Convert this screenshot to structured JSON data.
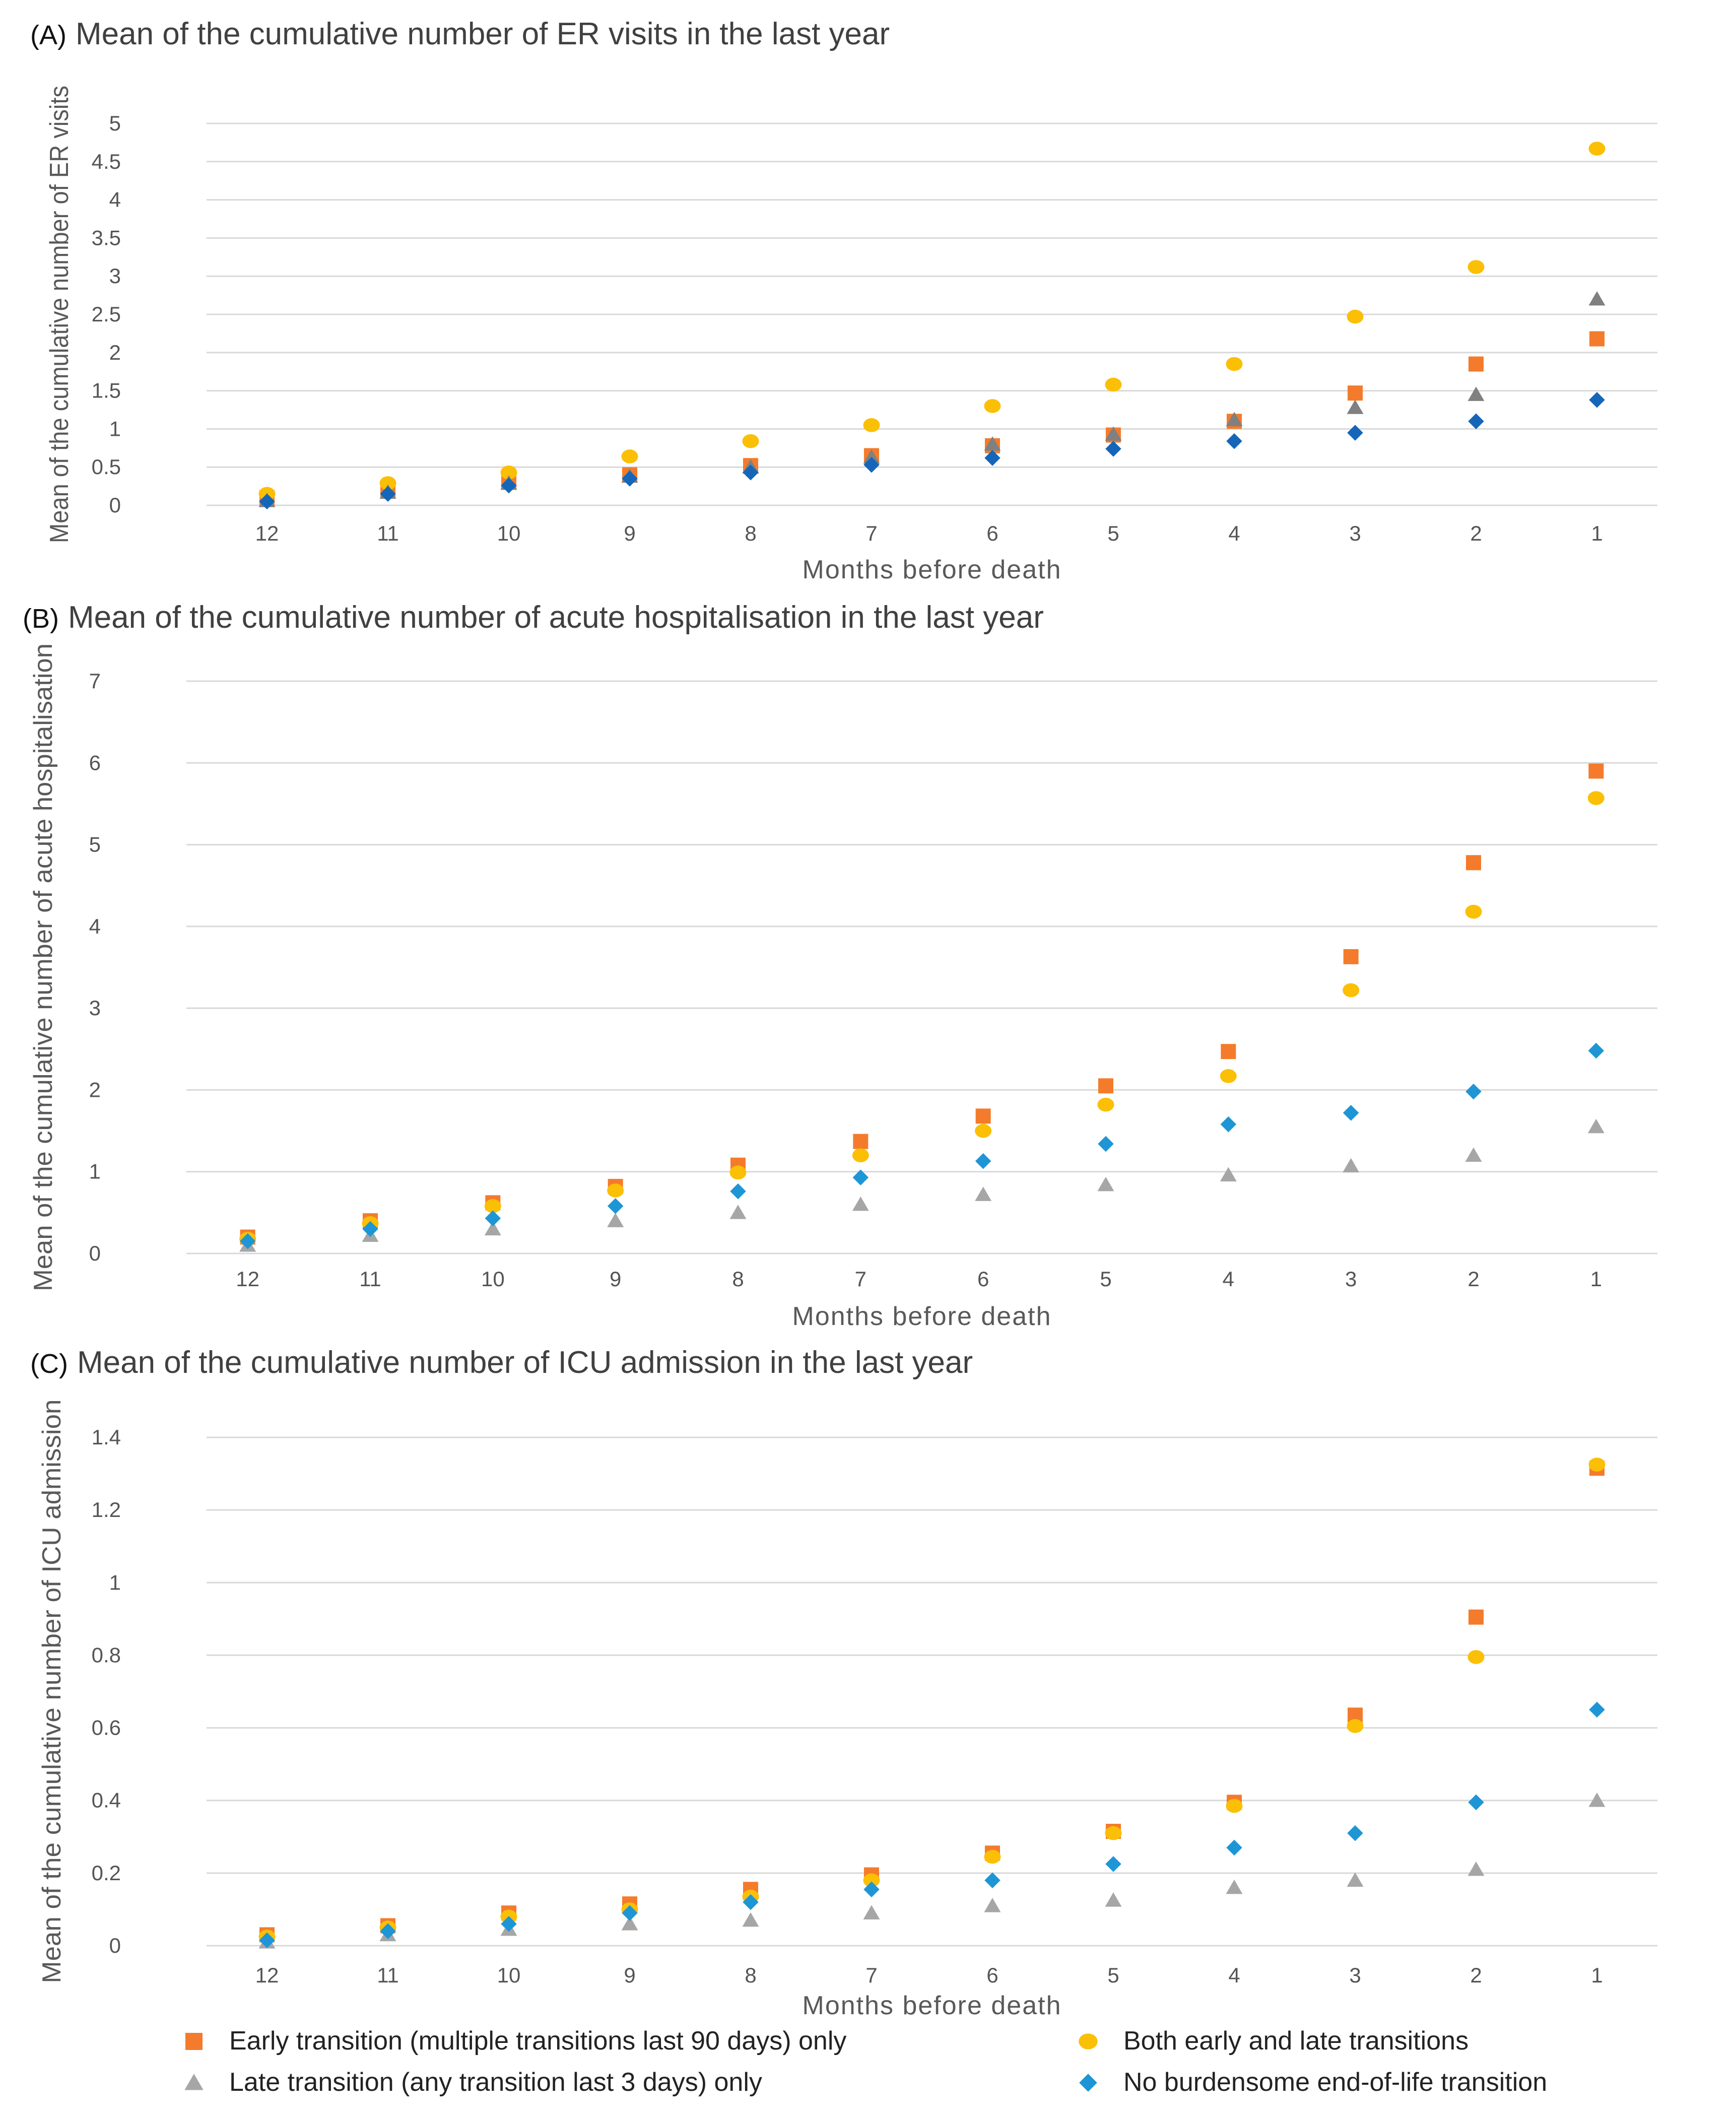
{
  "chart_data": [
    {
      "type": "scatter",
      "panel": "(A)",
      "title": "Mean of the cumulative number of ER visits in the last year",
      "xlabel": "Months  before death",
      "ylabel": "Mean of the cumulative number of ER visits",
      "ylim": [
        0,
        5
      ],
      "yticks": [
        "0",
        "0.5",
        "1",
        "1.5",
        "2",
        "2.5",
        "3",
        "3.5",
        "4",
        "4.5",
        "5"
      ],
      "categories": [
        "12",
        "11",
        "10",
        "9",
        "8",
        "7",
        "6",
        "5",
        "4",
        "3",
        "2",
        "1"
      ],
      "grid": true,
      "series": [
        {
          "name": "Early transition (multiple transitions last 90 days) only",
          "marker": "square",
          "color": "#f47b2b",
          "values": [
            0.1,
            0.19,
            0.3,
            0.4,
            0.52,
            0.65,
            0.78,
            0.92,
            1.1,
            1.47,
            1.85,
            2.18
          ]
        },
        {
          "name": "Both early and late transitions",
          "marker": "circle",
          "color": "#fbbf06",
          "values": [
            0.15,
            0.29,
            0.43,
            0.64,
            0.84,
            1.05,
            1.3,
            1.58,
            1.85,
            2.47,
            3.12,
            4.67
          ]
        },
        {
          "name": "Late transition (any transition last 3 days) only",
          "marker": "triangle",
          "color": "#808080",
          "values": [
            0.06,
            0.17,
            0.29,
            0.38,
            0.5,
            0.63,
            0.8,
            0.93,
            1.12,
            1.28,
            1.45,
            2.7
          ]
        },
        {
          "name": "No burdensome end-of-life transition",
          "marker": "diamond",
          "color": "#1566b8",
          "values": [
            0.05,
            0.15,
            0.26,
            0.35,
            0.43,
            0.53,
            0.62,
            0.74,
            0.84,
            0.95,
            1.1,
            1.38
          ]
        }
      ]
    },
    {
      "type": "scatter",
      "panel": "(B)",
      "title": "Mean of the cumulative number of acute hospitalisation in the last year",
      "xlabel": "Months  before death",
      "ylabel": "Mean of the cumulative number of acute hospitalisation",
      "ylim": [
        0,
        7
      ],
      "yticks": [
        "0",
        "1",
        "2",
        "3",
        "4",
        "5",
        "6",
        "7"
      ],
      "categories": [
        "12",
        "11",
        "10",
        "9",
        "8",
        "7",
        "6",
        "5",
        "4",
        "3",
        "2",
        "1"
      ],
      "grid": true,
      "series": [
        {
          "name": "Early transition (multiple transitions last 90 days) only",
          "marker": "square",
          "color": "#f47b2b",
          "values": [
            0.2,
            0.4,
            0.62,
            0.82,
            1.08,
            1.37,
            1.68,
            2.05,
            2.47,
            3.63,
            4.78,
            5.9
          ]
        },
        {
          "name": "Both early and late transitions",
          "marker": "circle",
          "color": "#fbbf06",
          "values": [
            0.18,
            0.37,
            0.58,
            0.77,
            0.99,
            1.2,
            1.5,
            1.82,
            2.17,
            3.22,
            4.18,
            5.57
          ]
        },
        {
          "name": "Late transition (any transition last 3 days) only",
          "marker": "triangle",
          "color": "#a6a6a6",
          "values": [
            0.1,
            0.22,
            0.3,
            0.4,
            0.5,
            0.6,
            0.72,
            0.84,
            0.96,
            1.07,
            1.2,
            1.55
          ]
        },
        {
          "name": "No burdensome end-of-life transition",
          "marker": "diamond",
          "color": "#1e96d6",
          "values": [
            0.15,
            0.3,
            0.43,
            0.58,
            0.76,
            0.93,
            1.13,
            1.34,
            1.58,
            1.72,
            1.98,
            2.48
          ]
        }
      ]
    },
    {
      "type": "scatter",
      "panel": "(C)",
      "title": "Mean of the cumulative number of ICU admission in the last year",
      "xlabel": "Months  before death",
      "ylabel": "Mean of the cumulative number of ICU admission",
      "ylim": [
        0,
        1.4
      ],
      "yticks": [
        "0",
        "0.2",
        "0.4",
        "0.6",
        "0.8",
        "1",
        "1.2",
        "1.4"
      ],
      "categories": [
        "12",
        "11",
        "10",
        "9",
        "8",
        "7",
        "6",
        "5",
        "4",
        "3",
        "2",
        "1"
      ],
      "grid": true,
      "series": [
        {
          "name": "Early transition (multiple transitions last 90 days) only",
          "marker": "square",
          "color": "#f47b2b",
          "values": [
            0.03,
            0.055,
            0.09,
            0.115,
            0.155,
            0.195,
            0.255,
            0.315,
            0.395,
            0.635,
            0.905,
            1.315
          ]
        },
        {
          "name": "Both early and late transitions",
          "marker": "circle",
          "color": "#fbbf06",
          "values": [
            0.025,
            0.05,
            0.08,
            0.1,
            0.135,
            0.18,
            0.245,
            0.31,
            0.385,
            0.605,
            0.795,
            1.325
          ]
        },
        {
          "name": "Late transition (any transition last 3 days) only",
          "marker": "triangle",
          "color": "#a6a6a6",
          "values": [
            0.01,
            0.03,
            0.045,
            0.06,
            0.07,
            0.09,
            0.11,
            0.125,
            0.16,
            0.18,
            0.21,
            0.4
          ]
        },
        {
          "name": "No burdensome end-of-life transition",
          "marker": "diamond",
          "color": "#1e96d6",
          "values": [
            0.015,
            0.04,
            0.06,
            0.09,
            0.12,
            0.155,
            0.18,
            0.225,
            0.27,
            0.31,
            0.395,
            0.65
          ]
        }
      ]
    }
  ],
  "legend": [
    {
      "label": "Early transition (multiple transitions last 90 days) only",
      "marker": "square",
      "color": "#f47b2b"
    },
    {
      "label": "Both early and late transitions",
      "marker": "circle",
      "color": "#fbbf06"
    },
    {
      "label": "Late transition (any transition last 3 days) only",
      "marker": "triangle",
      "color": "#a6a6a6"
    },
    {
      "label": "No burdensome end-of-life transition",
      "marker": "diamond",
      "color": "#1e96d6"
    }
  ]
}
